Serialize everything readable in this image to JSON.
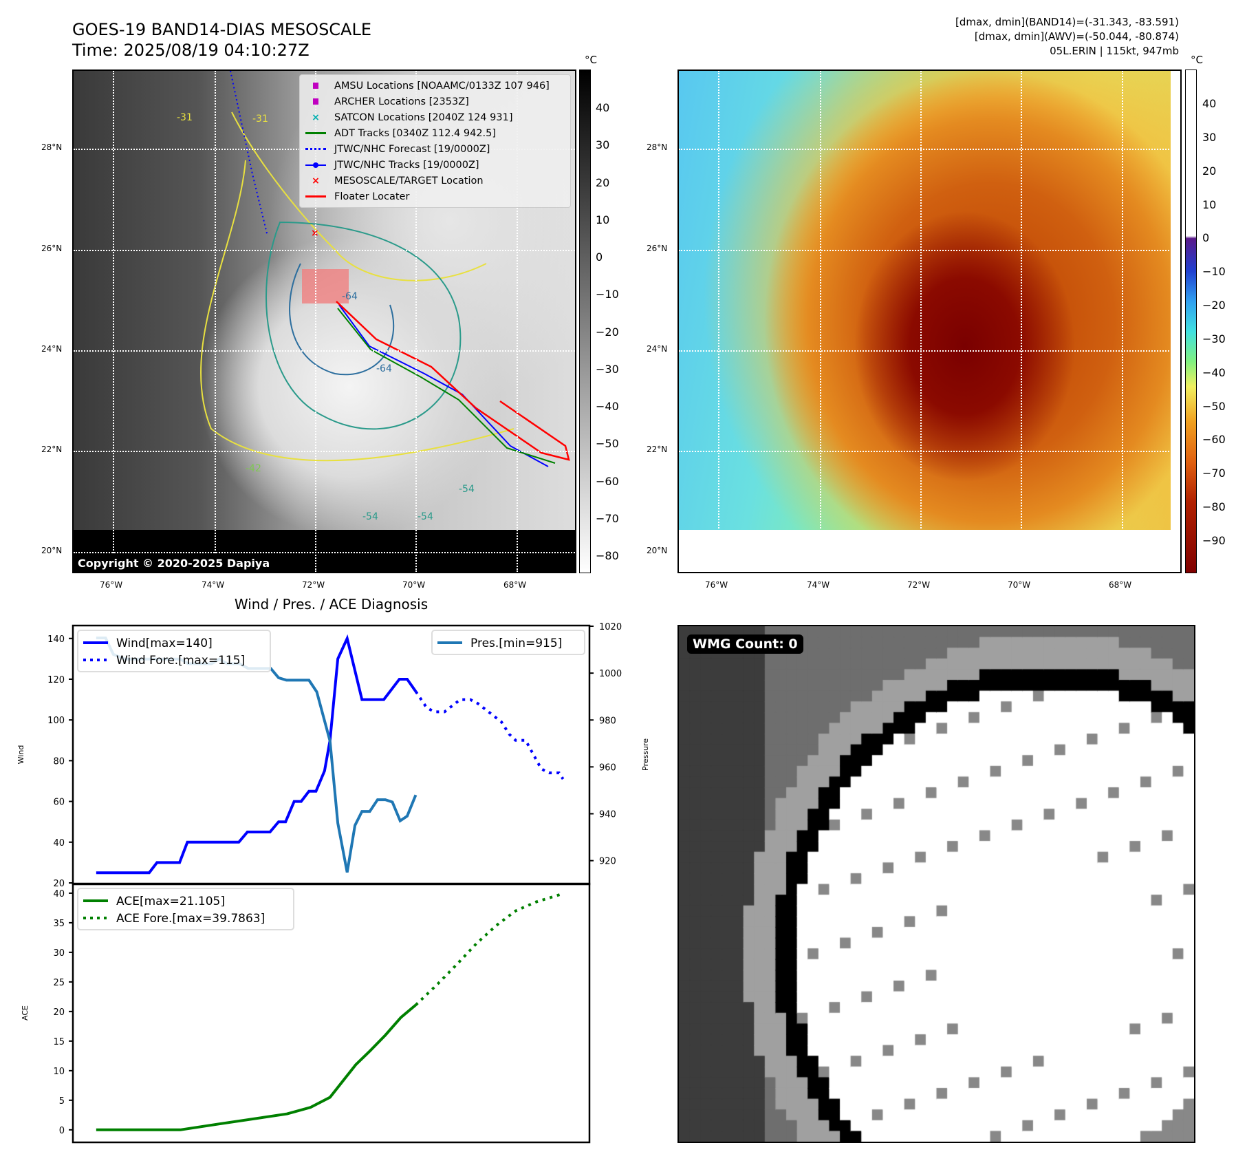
{
  "header": {
    "title_line1": "GOES-19 BAND14-DIAS MESOSCALE",
    "title_line2": "Time: 2025/08/19 04:10:27Z",
    "right_line1": "[dmax, dmin](BAND14)=(-31.343, -83.591)",
    "right_line2": "[dmax, dmin](AWV)=(-50.044, -80.874)",
    "right_line3": "05L.ERIN | 115kt, 947mb"
  },
  "maps": {
    "lon_ticks": [
      "76°W",
      "74°W",
      "72°W",
      "70°W",
      "68°W"
    ],
    "lat_ticks": [
      "28°N",
      "26°N",
      "24°N",
      "22°N",
      "20°N"
    ],
    "copyright": "Copyright © 2020-2025 Dapiya",
    "contour_labels": [
      "-31",
      "-31",
      "-64",
      "-64",
      "-54",
      "-54",
      "-54",
      "-42"
    ],
    "legend": [
      {
        "label": "AMSU Locations [NOAAMC/0133Z 107 946]",
        "icon": "square-marker",
        "color": "#c000c0"
      },
      {
        "label": "ARCHER Locations [2353Z]",
        "icon": "square-marker",
        "color": "#c000c0"
      },
      {
        "label": "SATCON Locations [2040Z 124 931]",
        "icon": "x-marker",
        "color": "#00b0b0"
      },
      {
        "label": "ADT Tracks [0340Z 112.4 942.5]",
        "icon": "solid-line",
        "color": "#008000"
      },
      {
        "label": "JTWC/NHC Forecast [19/0000Z]",
        "icon": "dotted-line",
        "color": "#0000ff"
      },
      {
        "label": "JTWC/NHC Tracks [19/0000Z]",
        "icon": "line-dot",
        "color": "#0000ff"
      },
      {
        "label": "MESOSCALE/TARGET Location",
        "icon": "x-marker",
        "color": "#ff0000"
      },
      {
        "label": "Floater Locater",
        "icon": "solid-line",
        "color": "#ff0000"
      }
    ]
  },
  "colorbar_left": {
    "unit": "°C",
    "ticks": [
      "40",
      "30",
      "20",
      "10",
      "0",
      "−10",
      "−20",
      "−30",
      "−40",
      "−50",
      "−60",
      "−70",
      "−80"
    ]
  },
  "colorbar_right": {
    "unit": "°C",
    "ticks": [
      "40",
      "30",
      "20",
      "10",
      "0",
      "−10",
      "−20",
      "−30",
      "−40",
      "−50",
      "−60",
      "−70",
      "−80",
      "−90"
    ]
  },
  "wmg": {
    "label": "WMG Count: 0"
  },
  "chart_data": [
    {
      "type": "line",
      "title": "Wind / Pres. / ACE Diagnosis",
      "ylabel": "Wind",
      "ylabel_right": "Pressure",
      "xlim": [
        -2.9,
        63.2
      ],
      "ylim": [
        20,
        146
      ],
      "ylim_right": [
        910.5,
        1020
      ],
      "yticks": [
        20,
        40,
        60,
        80,
        100,
        120,
        140
      ],
      "yticks_right": [
        920,
        940,
        960,
        980,
        1000,
        1020
      ],
      "series": [
        {
          "name": "Wind[max=140]",
          "style": "solid",
          "color": "#0000ff",
          "axis": "left",
          "x": [
            0,
            6.8,
            7.8,
            10.7,
            11.7,
            18.3,
            19.4,
            22.3,
            23.4,
            24.3,
            25.4,
            26.3,
            27.3,
            28.2,
            29.3,
            30,
            31,
            32.2,
            34.1,
            36.9,
            38.9,
            39.9,
            41
          ],
          "y": [
            25,
            25,
            30,
            30,
            40,
            40,
            45,
            45,
            50,
            50,
            60,
            60,
            65,
            65,
            75,
            90,
            130,
            140,
            110,
            110,
            120,
            120,
            114
          ]
        },
        {
          "name": "Wind Fore.[max=115]",
          "style": "dotted",
          "color": "#0000ff",
          "axis": "left",
          "x": [
            41,
            42.4,
            43.4,
            44.7,
            45.7,
            46.7,
            48,
            49,
            50,
            51,
            52,
            53,
            53.8,
            55.1,
            56.1,
            57.1,
            58.1,
            59.4,
            59.9
          ],
          "y": [
            114,
            106,
            104,
            104,
            107,
            110,
            110,
            108,
            105,
            102,
            99,
            93,
            90,
            90,
            83,
            76,
            74,
            74,
            71
          ]
        },
        {
          "name": "Pres.[min=915]",
          "style": "solid",
          "color": "#1f77b4",
          "axis": "right",
          "x": [
            0,
            1.2,
            2.2,
            3.7,
            10.8,
            11.8,
            14.8,
            15.8,
            16.8,
            18.4,
            19.5,
            22.4,
            23.4,
            24.4,
            27.3,
            28.3,
            30,
            31,
            32.2,
            33.2,
            34.1,
            35.1,
            36.1,
            37.1,
            38,
            39,
            39.9,
            41
          ],
          "y": [
            1015,
            1015,
            1008,
            1006,
            1006,
            1004,
            1004,
            1006,
            1004,
            1004,
            1002,
            1002,
            998,
            997,
            997,
            992,
            971,
            936,
            915,
            935,
            941,
            941,
            946,
            946,
            945,
            937,
            939,
            948
          ]
        }
      ]
    },
    {
      "type": "line",
      "ylabel": "ACE",
      "xlim": [
        -2.9,
        63.2
      ],
      "ylim": [
        -2,
        41.5
      ],
      "yticks": [
        0,
        5,
        10,
        15,
        20,
        25,
        30,
        35,
        40
      ],
      "series": [
        {
          "name": "ACE[max=21.105]",
          "style": "solid",
          "color": "#008000",
          "x": [
            0,
            10.8,
            15.8,
            19.4,
            24.5,
            27.5,
            30,
            32.1,
            33.3,
            35.1,
            37.1,
            39.1,
            41
          ],
          "y": [
            0,
            0,
            1,
            1.7,
            2.7,
            3.8,
            5.5,
            9,
            11,
            13.3,
            16,
            19,
            21.1
          ]
        },
        {
          "name": "ACE Fore.[max=39.7863]",
          "style": "dotted",
          "color": "#008000",
          "x": [
            41,
            43.7,
            46.3,
            48.8,
            51.3,
            53.8,
            56.4,
            59.6
          ],
          "y": [
            21.1,
            24.5,
            28,
            31.5,
            34.5,
            37,
            38.5,
            39.8
          ]
        }
      ]
    }
  ]
}
